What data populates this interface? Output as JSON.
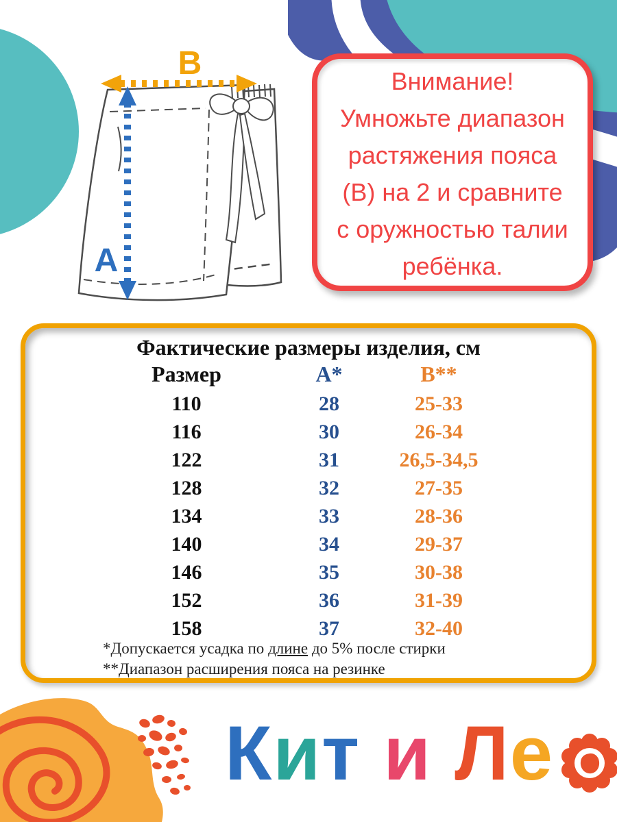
{
  "diagram": {
    "label_length": "А",
    "label_width": "В"
  },
  "warning": {
    "lines": [
      "Внимание!",
      "Умножьте диапазон",
      "растяжения пояса",
      "(В) на 2 и сравните",
      "с оружностью талии",
      "ребёнка."
    ]
  },
  "chart_data": {
    "type": "table",
    "title": "Фактические размеры изделия, см",
    "columns": [
      "Размер",
      "А*",
      "В**"
    ],
    "rows": [
      [
        "110",
        "28",
        "25-33"
      ],
      [
        "116",
        "30",
        "26-34"
      ],
      [
        "122",
        "31",
        "26,5-34,5"
      ],
      [
        "128",
        "32",
        "27-35"
      ],
      [
        "134",
        "33",
        "28-36"
      ],
      [
        "140",
        "34",
        "29-37"
      ],
      [
        "146",
        "35",
        "30-38"
      ],
      [
        "152",
        "36",
        "31-39"
      ],
      [
        "158",
        "37",
        "32-40"
      ]
    ],
    "footnotes": [
      "*Допускается усадка по длине до 5% после стирки",
      "**Диапазон расширения пояса на резинке"
    ],
    "units": "см",
    "layout": "3 centered columns, no gridlines, rounded orange frame"
  },
  "table_notes": {
    "note1_pre": "*Допускается усадка по ",
    "note1_underlined": "длине",
    "note1_post": " до 5% после стирки",
    "note2": "**Диапазон расширения пояса на резинке"
  },
  "logo": {
    "name": "Кит и Лео",
    "letters": [
      {
        "ch": "К",
        "color": "#2E6FBE"
      },
      {
        "ch": "и",
        "color": "#2BA599"
      },
      {
        "ch": "т",
        "color": "#2E6FBE"
      },
      {
        "ch": " ",
        "color": ""
      },
      {
        "ch": "и",
        "color": "#E8476B"
      },
      {
        "ch": " ",
        "color": ""
      },
      {
        "ch": "Л",
        "color": "#E8502B"
      },
      {
        "ch": "е",
        "color": "#F5A623"
      }
    ],
    "flower_icon": "flower-o"
  },
  "colors": {
    "warning_red": "#F04444",
    "table_border_orange": "#F0A202",
    "column_a_navy": "#27508F",
    "column_b_orange": "#E8822F",
    "arrow_b_orange": "#F2A30A",
    "arrow_a_blue": "#2E6FBE",
    "teal_blob": "#57BEC0",
    "indigo_blob": "#4C5DA9",
    "bottom_blob_orange": "#F6A83D",
    "spot_red": "#E8502B",
    "sketch_gray": "#4D4D4D"
  }
}
